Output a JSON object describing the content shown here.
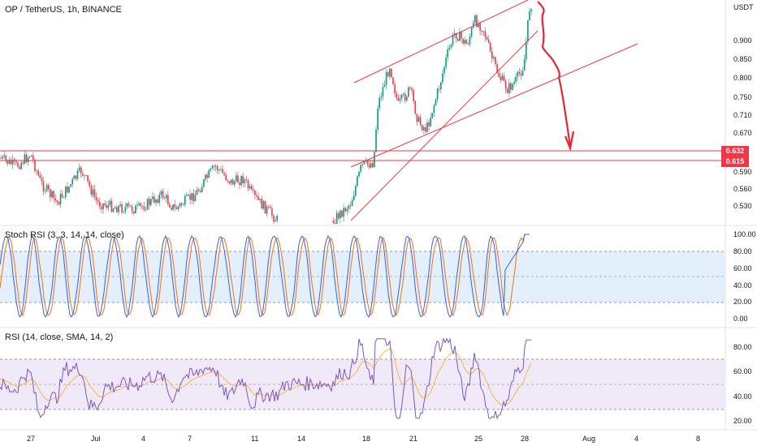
{
  "header": {
    "symbol_line": "OP / TetherUS, 1h, BINANCE",
    "currency": "USDT"
  },
  "main_axis": {
    "ticks": [
      "0.900",
      "0.850",
      "0.800",
      "0.750",
      "0.710",
      "0.670",
      "0.590",
      "0.560",
      "0.530"
    ]
  },
  "price_levels": {
    "upper": {
      "label": "0.632",
      "color": "#f23645"
    },
    "lower": {
      "label": "0.615",
      "color": "#f23645"
    }
  },
  "stoch_rsi": {
    "title": "Stoch RSI (3, 3, 14, 14, close)",
    "ticks": [
      "100.00",
      "80.00",
      "60.00",
      "40.00",
      "20.00",
      "0.00"
    ],
    "k_color": "#2962ff",
    "d_color": "#ff6d00",
    "band_color": "#e3f0fc"
  },
  "rsi": {
    "title": "RSI (14, close, SMA, 14, 2)",
    "ticks": [
      "80.00",
      "60.00",
      "40.00",
      "20.00"
    ],
    "line_color": "#7e57c2",
    "ma_color": "#f5b942",
    "band_color": "#efe9f8"
  },
  "time_axis": {
    "labels": [
      "27",
      "Jul",
      "4",
      "7",
      "11",
      "14",
      "18",
      "21",
      "25",
      "28",
      "Aug",
      "4",
      "8"
    ]
  },
  "colors": {
    "up": "#089981",
    "down": "#f23645",
    "drawing": "#f23645",
    "arrow": "#e8252e"
  }
}
